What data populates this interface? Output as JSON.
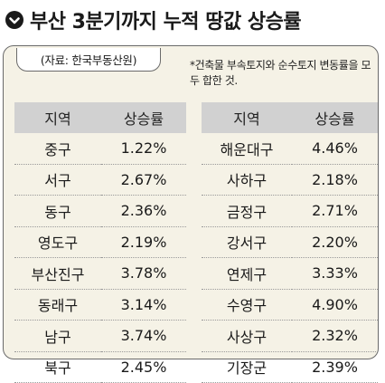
{
  "title": "부산 3분기까지 누적 땅값 상승률",
  "source": "(자료: 한국부동산원)",
  "note": "*건축물 부속토지와 순수토지 변동률을 모두 합한 것.",
  "headers": {
    "region": "지역",
    "rate": "상승률"
  },
  "left_rows": [
    {
      "region": "중구",
      "rate": "1.22%"
    },
    {
      "region": "서구",
      "rate": "2.67%"
    },
    {
      "region": "동구",
      "rate": "2.36%"
    },
    {
      "region": "영도구",
      "rate": "2.19%"
    },
    {
      "region": "부산진구",
      "rate": "3.78%"
    },
    {
      "region": "동래구",
      "rate": "3.14%"
    },
    {
      "region": "남구",
      "rate": "3.74%"
    },
    {
      "region": "북구",
      "rate": "2.45%"
    }
  ],
  "right_rows": [
    {
      "region": "해운대구",
      "rate": "4.46%"
    },
    {
      "region": "사하구",
      "rate": "2.18%"
    },
    {
      "region": "금정구",
      "rate": "2.71%"
    },
    {
      "region": "강서구",
      "rate": "2.20%"
    },
    {
      "region": "연제구",
      "rate": "3.33%"
    },
    {
      "region": "수영구",
      "rate": "4.90%"
    },
    {
      "region": "사상구",
      "rate": "2.32%"
    },
    {
      "region": "기장군",
      "rate": "2.39%"
    }
  ]
}
